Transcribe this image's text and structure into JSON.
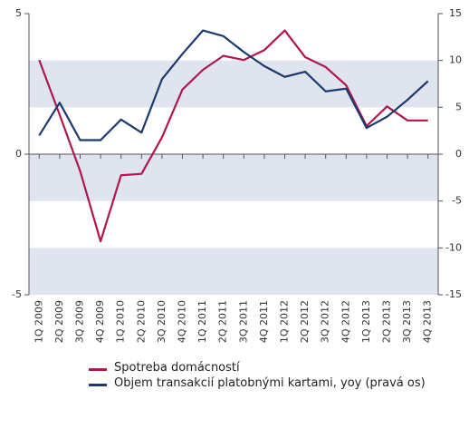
{
  "chart_data": {
    "type": "line",
    "categories": [
      "1Q 2009",
      "2Q 2009",
      "3Q 2009",
      "4Q 2009",
      "1Q 2010",
      "2Q 2010",
      "3Q 2010",
      "4Q 2010",
      "1Q 2011",
      "2Q 2011",
      "3Q 2011",
      "4Q 2011",
      "1Q 2012",
      "2Q 2012",
      "3Q 2012",
      "4Q 2012",
      "1Q 2013",
      "2Q 2013",
      "3Q 2013",
      "4Q 2013"
    ],
    "series": [
      {
        "name": "Spotreba domácností",
        "color": "#b0174f",
        "values": [
          3.35,
          1.4,
          -0.6,
          -3.1,
          -0.75,
          -0.7,
          0.6,
          2.3,
          3.0,
          3.5,
          3.35,
          3.7,
          4.4,
          3.45,
          3.1,
          2.45,
          1.0,
          1.7,
          1.2,
          1.2
        ]
      },
      {
        "name": "Objem transakcií platobnými kartami, yoy (pravá os)",
        "color": "#1a3a6e",
        "axis": "y2",
        "values": [
          2.0,
          5.5,
          1.5,
          1.5,
          3.7,
          2.3,
          8.0,
          10.7,
          13.2,
          12.6,
          10.9,
          9.4,
          8.25,
          8.8,
          6.7,
          7.0,
          2.8,
          4.0,
          5.8,
          7.8
        ]
      }
    ],
    "ylim": [
      -5,
      5
    ],
    "yticks": [
      5,
      0,
      -5
    ],
    "y2lim": [
      -15,
      15
    ],
    "y2ticks": [
      15,
      10,
      5,
      0,
      -5,
      -10,
      -15
    ],
    "band_color": "#dfe4ef"
  }
}
